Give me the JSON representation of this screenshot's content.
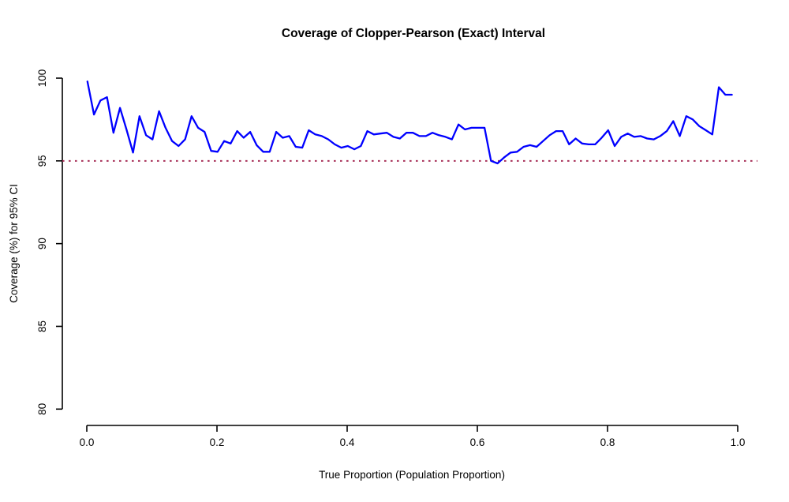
{
  "figure": {
    "background": "#ffffff"
  },
  "chart_data": {
    "type": "line",
    "title": "Coverage of Clopper-Pearson (Exact) Interval",
    "xlabel": "True Proportion (Population Proportion)",
    "ylabel": "Coverage (%) for 95% CI",
    "xlim": [
      0.0,
      1.0
    ],
    "ylim": [
      80,
      100
    ],
    "grid": false,
    "legend": "none",
    "x_tick_values": [
      0.0,
      0.2,
      0.4,
      0.6,
      0.8,
      1.0
    ],
    "x_tick_labels": [
      "0.0",
      "0.2",
      "0.4",
      "0.6",
      "0.8",
      "1.0"
    ],
    "y_tick_values": [
      80,
      85,
      90,
      95,
      100
    ],
    "y_tick_labels": [
      "80",
      "85",
      "90",
      "95",
      "100"
    ],
    "reference_line": {
      "y": 95,
      "style": "dotted",
      "color": "#A83058"
    },
    "line_color": "#0000FF",
    "series": [
      {
        "name": "Clopper-Pearson coverage",
        "x": [
          0.001,
          0.011,
          0.021,
          0.031,
          0.041,
          0.051,
          0.061,
          0.071,
          0.081,
          0.091,
          0.101,
          0.111,
          0.121,
          0.131,
          0.141,
          0.151,
          0.161,
          0.171,
          0.181,
          0.191,
          0.201,
          0.211,
          0.221,
          0.231,
          0.241,
          0.251,
          0.261,
          0.271,
          0.281,
          0.291,
          0.301,
          0.311,
          0.321,
          0.331,
          0.341,
          0.351,
          0.361,
          0.371,
          0.381,
          0.391,
          0.401,
          0.411,
          0.421,
          0.431,
          0.441,
          0.451,
          0.461,
          0.471,
          0.481,
          0.491,
          0.501,
          0.511,
          0.521,
          0.531,
          0.541,
          0.551,
          0.561,
          0.571,
          0.581,
          0.591,
          0.601,
          0.611,
          0.621,
          0.631,
          0.641,
          0.651,
          0.661,
          0.671,
          0.681,
          0.691,
          0.701,
          0.711,
          0.721,
          0.731,
          0.741,
          0.751,
          0.761,
          0.771,
          0.781,
          0.791,
          0.801,
          0.811,
          0.821,
          0.831,
          0.841,
          0.851,
          0.861,
          0.871,
          0.881,
          0.891,
          0.901,
          0.911,
          0.921,
          0.931,
          0.941,
          0.951,
          0.961,
          0.971,
          0.981,
          0.991
        ],
        "y": [
          99.8,
          97.8,
          98.65,
          98.85,
          96.7,
          98.2,
          96.9,
          95.5,
          97.7,
          96.55,
          96.3,
          98.0,
          97.0,
          96.2,
          95.9,
          96.3,
          97.7,
          97.0,
          96.75,
          95.6,
          95.55,
          96.2,
          96.05,
          96.8,
          96.4,
          96.75,
          95.95,
          95.55,
          95.55,
          96.75,
          96.4,
          96.5,
          95.85,
          95.8,
          96.85,
          96.6,
          96.5,
          96.3,
          96.0,
          95.8,
          95.9,
          95.7,
          95.9,
          96.8,
          96.6,
          96.65,
          96.7,
          96.45,
          96.35,
          96.7,
          96.7,
          96.5,
          96.5,
          96.7,
          96.55,
          96.45,
          96.3,
          97.2,
          96.9,
          97.0,
          97.0,
          97.0,
          95.0,
          94.85,
          95.2,
          95.5,
          95.55,
          95.85,
          95.95,
          95.85,
          96.2,
          96.55,
          96.8,
          96.8,
          96.0,
          96.35,
          96.05,
          96.0,
          96.0,
          96.4,
          96.85,
          95.9,
          96.45,
          96.65,
          96.45,
          96.5,
          96.35,
          96.3,
          96.5,
          96.8,
          97.4,
          96.5,
          97.7,
          97.5,
          97.1,
          96.85,
          96.6,
          99.45,
          99.0,
          99.0
        ]
      }
    ]
  }
}
